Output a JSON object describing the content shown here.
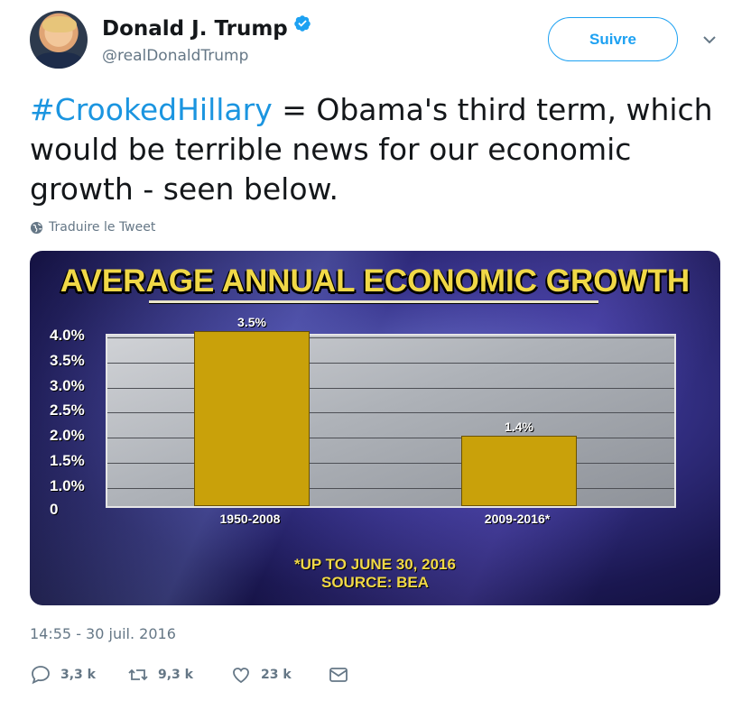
{
  "author": {
    "name": "Donald J. Trump",
    "handle": "@realDonaldTrump",
    "verified_icon": "verified-badge-icon"
  },
  "follow_button": {
    "label": "Suivre"
  },
  "tweet": {
    "hashtag": "#CrookedHillary",
    "text": " = Obama's third term, which would be terrible news for our economic growth - seen below.",
    "translate_label": "Traduire le Tweet",
    "timestamp": "14:55 - 30 juil. 2016"
  },
  "actions": {
    "replies": "3,3 k",
    "retweets": "9,3 k",
    "likes": "23 k"
  },
  "colors": {
    "link": "#1b95e0",
    "accent": "#1da1f2",
    "bar": "#c9a10a",
    "chart_title": "#f0d847"
  },
  "chart_data": {
    "type": "bar",
    "title": "AVERAGE ANNUAL ECONOMIC GROWTH",
    "categories": [
      "1950-2008",
      "2009-2016*"
    ],
    "values": [
      3.5,
      1.4
    ],
    "value_labels": [
      "3.5%",
      "1.4%"
    ],
    "yticks": [
      "4.0%",
      "3.5%",
      "3.0%",
      "2.5%",
      "2.0%",
      "1.5%",
      "1.0%",
      "0"
    ],
    "ylim": [
      0,
      4.0
    ],
    "grid": true,
    "footnote": "*UP TO JUNE 30, 2016",
    "source": "SOURCE: BEA"
  }
}
